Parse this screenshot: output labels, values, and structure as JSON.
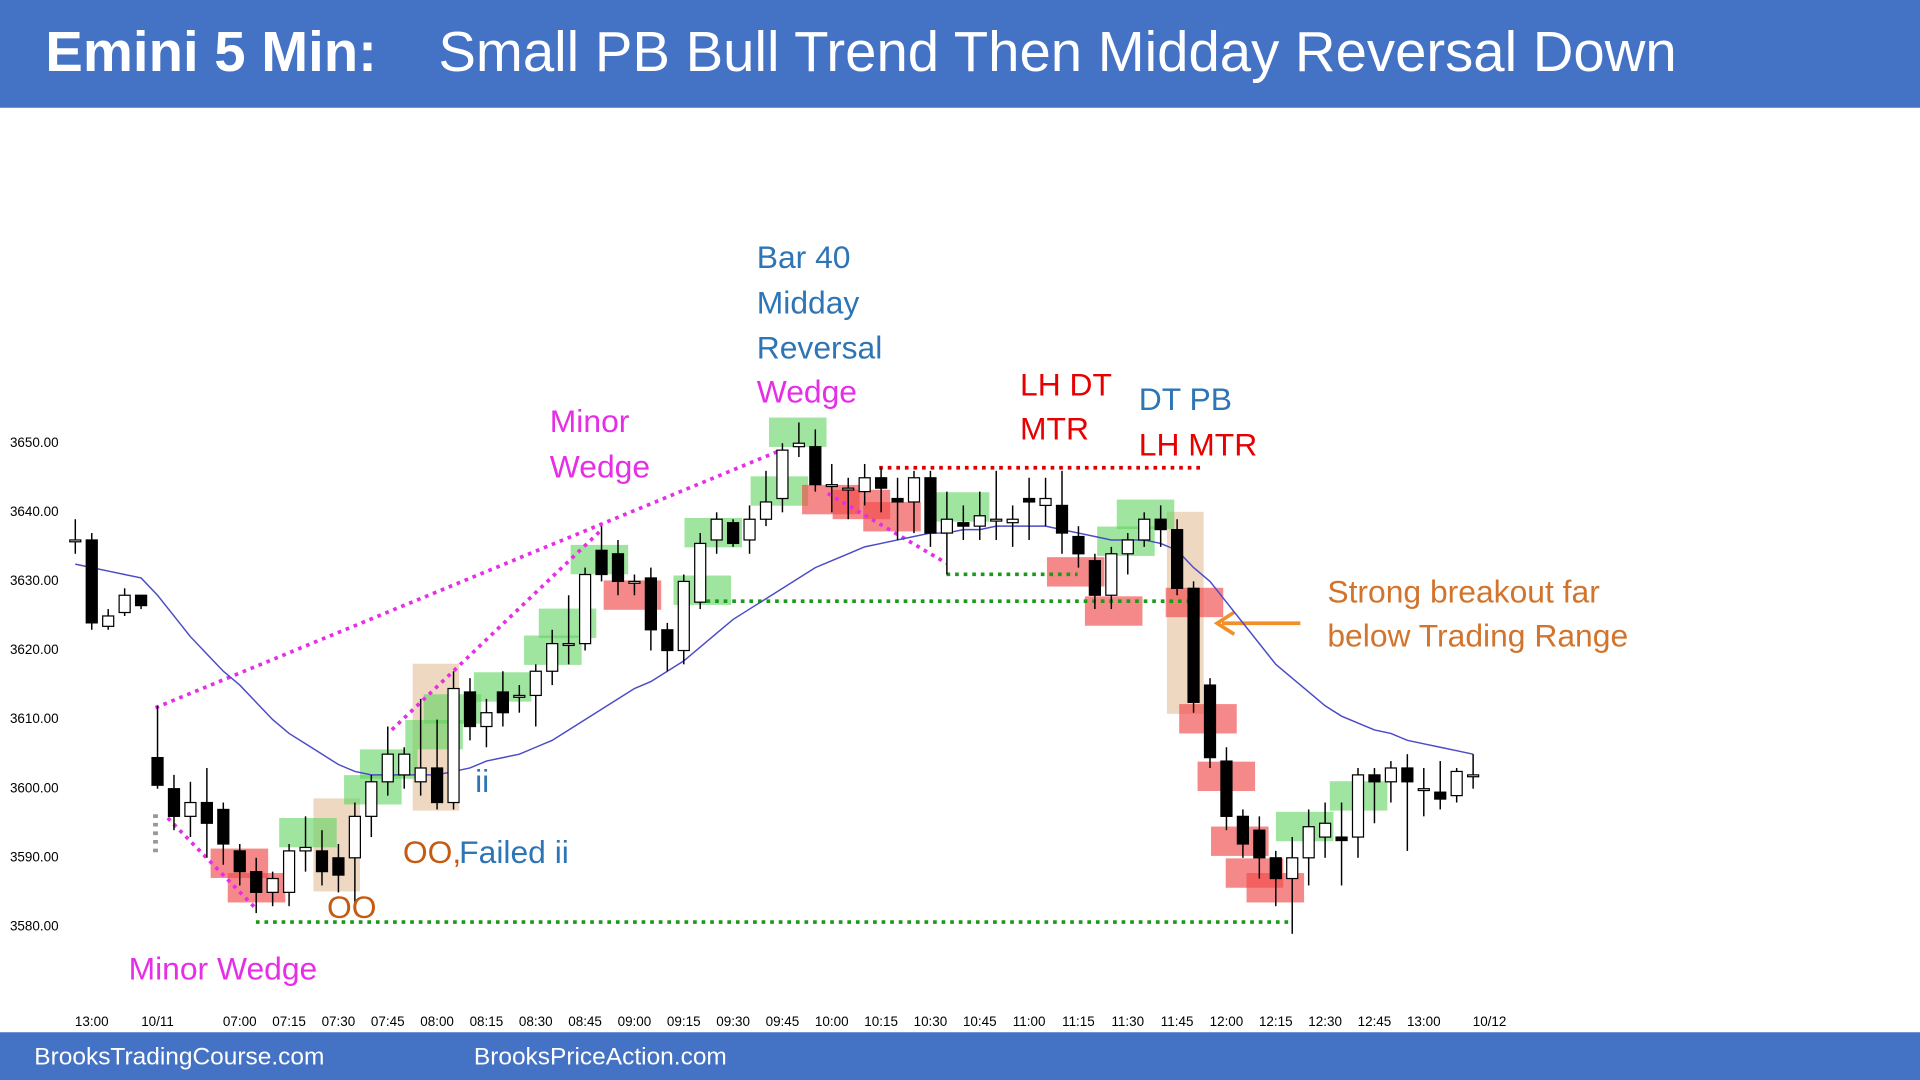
{
  "chart_data": {
    "type": "candlestick",
    "title": "Emini 5 Min:",
    "subtitle": "Small PB Bull Trend Then Midday Reversal Down",
    "categories": [
      null,
      "13:00",
      null,
      null,
      null,
      "10/11",
      null,
      null,
      null,
      null,
      "07:00",
      null,
      null,
      "07:15",
      null,
      null,
      "07:30",
      null,
      null,
      "07:45",
      null,
      null,
      "08:00",
      null,
      null,
      "08:15",
      null,
      null,
      "08:30",
      null,
      null,
      "08:45",
      null,
      null,
      "09:00",
      null,
      null,
      "09:15",
      null,
      null,
      "09:30",
      null,
      null,
      "09:45",
      null,
      null,
      "10:00",
      null,
      null,
      "10:15",
      null,
      null,
      "10:30",
      null,
      null,
      "10:45",
      null,
      null,
      "11:00",
      null,
      null,
      "11:15",
      null,
      null,
      "11:30",
      null,
      null,
      "11:45",
      null,
      null,
      "12:00",
      null,
      null,
      "12:15",
      null,
      null,
      "12:30",
      null,
      null,
      "12:45",
      null,
      null,
      "13:00",
      null,
      null,
      null,
      "10/12"
    ],
    "ohlc": [
      [
        3636,
        3639,
        3634,
        3636
      ],
      [
        3636,
        3637,
        3623,
        3624
      ],
      [
        3623.5,
        3626,
        3623,
        3625
      ],
      [
        3625.5,
        3629,
        3625,
        3628
      ],
      [
        3628,
        3628,
        3626,
        3626.5
      ],
      [
        3604.5,
        3612,
        3600,
        3600.5
      ],
      [
        3600,
        3602,
        3594,
        3596
      ],
      [
        3596,
        3601,
        3593,
        3598
      ],
      [
        3598,
        3603,
        3590,
        3595
      ],
      [
        3597,
        3598,
        3589,
        3592
      ],
      [
        3591,
        3592,
        3586,
        3588
      ],
      [
        3588,
        3590,
        3582,
        3585
      ],
      [
        3585,
        3588,
        3583,
        3587
      ],
      [
        3585,
        3592,
        3583,
        3591
      ],
      [
        3591,
        3596,
        3588,
        3591.5
      ],
      [
        3591,
        3594,
        3586,
        3588
      ],
      [
        3590,
        3592,
        3585,
        3587.5
      ],
      [
        3590,
        3598,
        3583,
        3596
      ],
      [
        3596,
        3602,
        3593,
        3601
      ],
      [
        3601,
        3609,
        3599,
        3605
      ],
      [
        3602,
        3606,
        3600,
        3605
      ],
      [
        3601,
        3613,
        3599,
        3603
      ],
      [
        3603,
        3610,
        3597,
        3598
      ],
      [
        3598,
        3617,
        3597,
        3614.5
      ],
      [
        3614,
        3616,
        3607,
        3609
      ],
      [
        3609,
        3613,
        3606,
        3611
      ],
      [
        3614,
        3617,
        3609,
        3611
      ],
      [
        3613.5,
        3615,
        3611,
        3613.5
      ],
      [
        3613.5,
        3618,
        3609,
        3617
      ],
      [
        3617,
        3623,
        3615,
        3621
      ],
      [
        3621,
        3628,
        3618,
        3621
      ],
      [
        3621,
        3632,
        3620,
        3631
      ],
      [
        3634.5,
        3638,
        3630,
        3631
      ],
      [
        3634,
        3636,
        3628,
        3630
      ],
      [
        3630,
        3631,
        3628,
        3630
      ],
      [
        3630.5,
        3632,
        3620,
        3623
      ],
      [
        3623,
        3624,
        3617,
        3620
      ],
      [
        3620,
        3631,
        3618,
        3630
      ],
      [
        3627,
        3637,
        3626,
        3635.5
      ],
      [
        3636,
        3640,
        3634,
        3639
      ],
      [
        3638.5,
        3639,
        3635,
        3635.5
      ],
      [
        3636,
        3641,
        3634,
        3639
      ],
      [
        3639,
        3646,
        3638,
        3641.5
      ],
      [
        3642,
        3650,
        3640,
        3649
      ],
      [
        3649.5,
        3653,
        3648,
        3650
      ],
      [
        3649.5,
        3652,
        3643,
        3644
      ],
      [
        3644,
        3647,
        3640,
        3644
      ],
      [
        3643.5,
        3645,
        3639,
        3643.5
      ],
      [
        3643,
        3647,
        3641,
        3645
      ],
      [
        3645,
        3646.5,
        3640,
        3643.5
      ],
      [
        3642,
        3645,
        3636,
        3641.5
      ],
      [
        3641.5,
        3646,
        3637,
        3645
      ],
      [
        3645,
        3646,
        3635,
        3637
      ],
      [
        3637,
        3643,
        3631,
        3639
      ],
      [
        3638.5,
        3641,
        3636,
        3638
      ],
      [
        3638,
        3643,
        3636,
        3639.5
      ],
      [
        3639,
        3646,
        3636,
        3639
      ],
      [
        3638.5,
        3641,
        3635,
        3639
      ],
      [
        3642,
        3645,
        3636,
        3641.5
      ],
      [
        3641,
        3645,
        3638,
        3642
      ],
      [
        3641,
        3646,
        3634,
        3637
      ],
      [
        3636.5,
        3638,
        3632,
        3634
      ],
      [
        3633,
        3634,
        3626,
        3628
      ],
      [
        3628,
        3635,
        3626,
        3634
      ],
      [
        3634,
        3637,
        3631,
        3636
      ],
      [
        3636,
        3640,
        3635,
        3639
      ],
      [
        3639,
        3641,
        3635,
        3637.5
      ],
      [
        3637.5,
        3639,
        3628,
        3629
      ],
      [
        3629,
        3630,
        3611,
        3612.5
      ],
      [
        3615,
        3616,
        3603,
        3604.5
      ],
      [
        3604,
        3606,
        3594,
        3596
      ],
      [
        3596,
        3597,
        3590,
        3592
      ],
      [
        3594,
        3596,
        3587,
        3590
      ],
      [
        3590,
        3591,
        3583,
        3587
      ],
      [
        3587,
        3593,
        3579,
        3590
      ],
      [
        3590,
        3597,
        3586,
        3594.5
      ],
      [
        3593,
        3598,
        3590,
        3595
      ],
      [
        3593,
        3598,
        3586,
        3592.5
      ],
      [
        3593,
        3603,
        3590,
        3602
      ],
      [
        3602,
        3603,
        3595,
        3601
      ],
      [
        3601,
        3604,
        3598,
        3603
      ],
      [
        3603,
        3605,
        3591,
        3601
      ],
      [
        3600,
        3603,
        3596,
        3600
      ],
      [
        3599.5,
        3604,
        3597,
        3598.5
      ],
      [
        3599,
        3603,
        3598,
        3602.5
      ],
      [
        3602,
        3605,
        3600,
        3602
      ],
      null
    ],
    "ma": [
      3632.5,
      3632,
      3631.5,
      3631,
      3630.5,
      3628,
      3625,
      3622,
      3619.5,
      3617,
      3615,
      3612.5,
      3610,
      3608,
      3606.5,
      3605,
      3603.5,
      3602.5,
      3602,
      3602,
      3602,
      3602,
      3602,
      3602.5,
      3603,
      3604,
      3604.5,
      3605,
      3606,
      3607,
      3608.5,
      3610,
      3611.5,
      3613,
      3614.5,
      3615.5,
      3617,
      3618.5,
      3620.5,
      3622.5,
      3624.5,
      3626,
      3627.5,
      3629,
      3630.5,
      3632,
      3633,
      3634,
      3635,
      3635.5,
      3636,
      3636.5,
      3637,
      3637,
      3637.5,
      3637.5,
      3638,
      3638,
      3638,
      3638,
      3637.5,
      3637,
      3636.5,
      3636,
      3636,
      3636,
      3635.5,
      3634.5,
      3632,
      3630,
      3627,
      3624,
      3621,
      3618,
      3616,
      3614,
      3612,
      3610.5,
      3609.5,
      3608.5,
      3608,
      3607,
      3606.5,
      3606,
      3605.5,
      3605,
      null
    ],
    "ma_color": "#4b4bc8",
    "up_color": "#ffffff",
    "down_color": "#000000",
    "ylim": [
      3570,
      3696
    ],
    "yticks": [
      {
        "value": 3580,
        "label": "3580.00"
      },
      {
        "value": 3590,
        "label": "3590.00"
      },
      {
        "value": 3600,
        "label": "3600.00"
      },
      {
        "value": 3610,
        "label": "3610.00"
      },
      {
        "value": 3620,
        "label": "3620.00"
      },
      {
        "value": 3630,
        "label": "3630.00"
      },
      {
        "value": 3640,
        "label": "3640.00"
      },
      {
        "value": 3650,
        "label": "3650.00"
      }
    ],
    "grid": false,
    "annotations": [
      "Bar 40",
      "Midday",
      "Reversal",
      "Wedge",
      "Minor",
      "Wedge",
      "LH DT",
      "MTR",
      "DT PB",
      "LH MTR",
      "Strong breakout far",
      "below Trading Range",
      "ii",
      "OO,",
      "Failed ii",
      "OO",
      "Minor Wedge"
    ]
  },
  "footer": [
    "BrooksTradingCourse.com",
    "BrooksPriceAction.com"
  ]
}
